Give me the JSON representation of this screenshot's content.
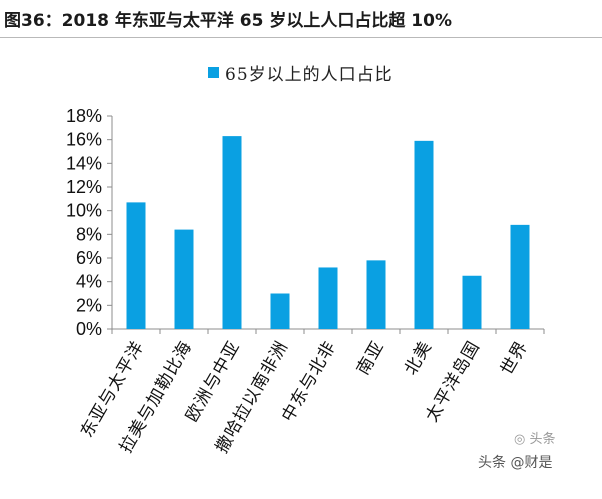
{
  "chart_data": {
    "type": "bar",
    "title": "图36：2018 年东亚与太平洋 65 岁以上人口占比超 10%",
    "legend": "65岁以上的人口占比",
    "legend_position": "top",
    "categories": [
      "东亚与太平洋",
      "拉美与加勒比海",
      "欧洲与中亚",
      "撒哈拉以南非洲",
      "中东与北非",
      "南亚",
      "北美",
      "太平洋岛国",
      "世界"
    ],
    "series": [
      {
        "name": "65岁以上的人口占比",
        "values": [
          10.7,
          8.4,
          16.3,
          3.0,
          5.2,
          5.8,
          15.9,
          4.5,
          8.8
        ]
      }
    ],
    "ylim": [
      0,
      18
    ],
    "yticks": [
      "0%",
      "2%",
      "4%",
      "6%",
      "8%",
      "10%",
      "12%",
      "14%",
      "16%",
      "18%"
    ],
    "grid": false,
    "colors": {
      "bar": "#0aa0e2",
      "axis": "#8c8c8c"
    }
  },
  "watermark": {
    "text": "头条 @财是",
    "icon": "wechat-icon"
  }
}
